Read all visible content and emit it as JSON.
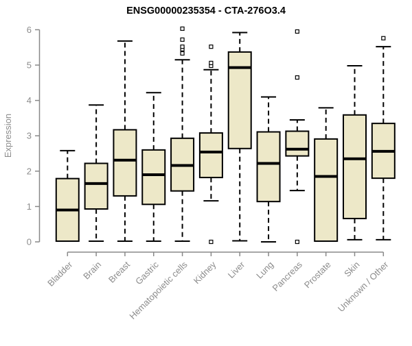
{
  "chart_data": {
    "type": "box",
    "title": "ENSG00000235354 - CTA-276O3.4",
    "xlabel": "",
    "ylabel": "Expression",
    "ylim": [
      0,
      6
    ],
    "yticks": [
      0,
      1,
      2,
      3,
      4,
      5,
      6
    ],
    "grid": false,
    "legend": "none",
    "categories": [
      "Bladder",
      "Brain",
      "Breast",
      "Gastric",
      "Hematopoietic cells",
      "Kidney",
      "Liver",
      "Lung",
      "Pancreas",
      "Prostate",
      "Skin",
      "Unknown / Other"
    ],
    "series": [
      {
        "name": "Bladder",
        "min": 0.02,
        "q1": 0.02,
        "median": 0.9,
        "q3": 1.79,
        "max": 2.58,
        "outliers": []
      },
      {
        "name": "Brain",
        "min": 0.02,
        "q1": 0.93,
        "median": 1.65,
        "q3": 2.22,
        "max": 3.87,
        "outliers": []
      },
      {
        "name": "Breast",
        "min": 0.02,
        "q1": 1.3,
        "median": 2.31,
        "q3": 3.17,
        "max": 5.68,
        "outliers": []
      },
      {
        "name": "Gastric",
        "min": 0.02,
        "q1": 1.06,
        "median": 1.9,
        "q3": 2.6,
        "max": 4.22,
        "outliers": []
      },
      {
        "name": "Hematopoietic cells",
        "min": 0.02,
        "q1": 1.44,
        "median": 2.16,
        "q3": 2.93,
        "max": 5.15,
        "outliers": [
          5.33,
          5.45,
          5.52,
          5.72,
          6.03
        ]
      },
      {
        "name": "Kidney",
        "min": 1.16,
        "q1": 1.82,
        "median": 2.54,
        "q3": 3.08,
        "max": 4.87,
        "outliers": [
          0.0,
          4.98,
          5.06,
          5.52
        ]
      },
      {
        "name": "Liver",
        "min": 0.03,
        "q1": 2.64,
        "median": 4.93,
        "q3": 5.37,
        "max": 5.92,
        "outliers": []
      },
      {
        "name": "Lung",
        "min": 0.0,
        "q1": 1.14,
        "median": 2.22,
        "q3": 3.11,
        "max": 4.1,
        "outliers": []
      },
      {
        "name": "Pancreas",
        "min": 1.45,
        "q1": 2.43,
        "median": 2.62,
        "q3": 3.13,
        "max": 3.45,
        "outliers": [
          0.0,
          4.65,
          5.95
        ]
      },
      {
        "name": "Prostate",
        "min": 0.02,
        "q1": 0.02,
        "median": 1.85,
        "q3": 2.91,
        "max": 3.79,
        "outliers": []
      },
      {
        "name": "Skin",
        "min": 0.06,
        "q1": 0.66,
        "median": 2.35,
        "q3": 3.59,
        "max": 4.98,
        "outliers": []
      },
      {
        "name": "Unknown / Other",
        "min": 0.06,
        "q1": 1.8,
        "median": 2.56,
        "q3": 3.35,
        "max": 5.52,
        "outliers": [
          5.76
        ]
      }
    ],
    "colors": {
      "box_fill": "#EDE8C8",
      "box_border": "#000000",
      "median": "#000000",
      "whisker": "#000000",
      "outlier_fill": "#FFFFFF",
      "outlier_border": "#000000",
      "axis": "#888888",
      "tick_text": "#8C8C8C",
      "title_text": "#000000",
      "background": "#FFFFFF"
    }
  }
}
